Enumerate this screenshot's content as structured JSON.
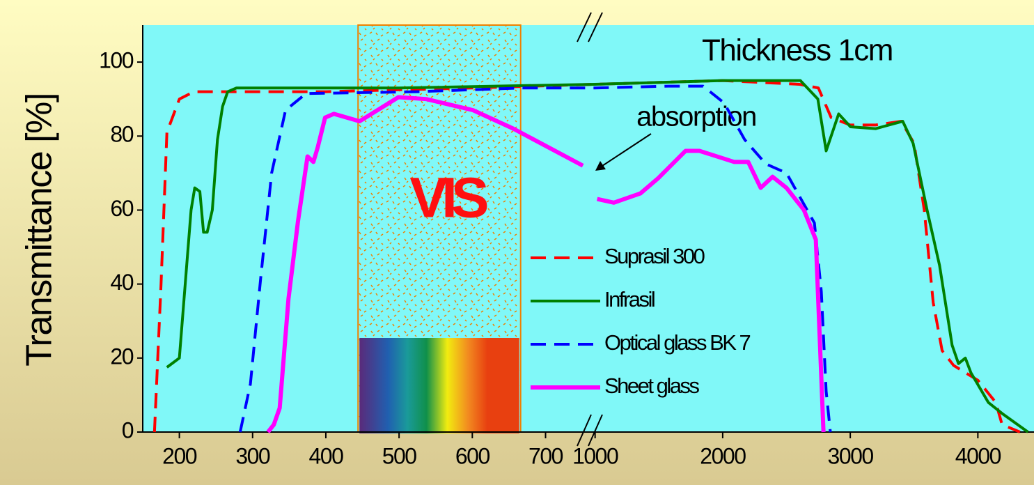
{
  "chart_data": {
    "type": "line",
    "y_label": "Transmittance [%]",
    "ylim": [
      0,
      110
    ],
    "yticks": [
      0,
      20,
      40,
      60,
      80,
      100
    ],
    "x_segments": [
      {
        "xlim": [
          150,
          758
        ],
        "xticks": [
          200,
          300,
          400,
          500,
          600,
          700
        ]
      },
      {
        "xlim": [
          950,
          4440
        ],
        "xticks": [
          1000,
          2000,
          3000,
          4000
        ]
      }
    ],
    "note": "Thickness 1cm",
    "annotation": "absorption",
    "band": {
      "label": "VIS",
      "x": [
        444,
        666
      ]
    },
    "series": [
      {
        "name": "Suprasil 300",
        "color": "#ff0000",
        "style": "dashed",
        "width": 4,
        "x": [
          166,
          175,
          183,
          200,
          220,
          400,
          600,
          1000,
          2000,
          2600,
          2750,
          2850,
          3000,
          3200,
          3400,
          3500,
          3580,
          3650,
          3720,
          3810,
          4000,
          4140,
          4190,
          4330
        ],
        "values": [
          0,
          40,
          81,
          90,
          92,
          92,
          93,
          94,
          95,
          94,
          93,
          85,
          83,
          83,
          84,
          78,
          60,
          35,
          22,
          18,
          14,
          8,
          2,
          0
        ]
      },
      {
        "name": "Infrasil",
        "color": "#008000",
        "style": "solid",
        "width": 4,
        "x": [
          183,
          200,
          216,
          221,
          228,
          233,
          238,
          245,
          252,
          259,
          266,
          278,
          500,
          1000,
          2000,
          2609,
          2746,
          2811,
          2909,
          3002,
          3198,
          3411,
          3493,
          3602,
          3700,
          3798,
          3848,
          3902,
          3946,
          4082,
          4191,
          4393
        ],
        "values": [
          17.5,
          20,
          60,
          66,
          65,
          54,
          54,
          60,
          79,
          88,
          92,
          93,
          93,
          94,
          95,
          95,
          90,
          76,
          86,
          82.5,
          82,
          84,
          78,
          60,
          45,
          23.5,
          18.5,
          20,
          16,
          8,
          5,
          0
        ]
      },
      {
        "name": "Optical glass BK 7",
        "color": "#0000ff",
        "style": "dashed",
        "width": 4,
        "x": [
          283,
          297,
          311,
          326,
          345,
          373,
          525,
          668,
          1000,
          1573,
          1846,
          2010,
          2173,
          2337,
          2500,
          2719,
          2773,
          2811,
          2844
        ],
        "values": [
          0,
          13,
          41.5,
          70,
          87,
          91.5,
          92,
          93,
          93,
          93.5,
          93.5,
          89,
          79,
          72.5,
          70,
          56.5,
          38,
          11,
          0
        ]
      },
      {
        "name": "Sheet glass",
        "color": "#ff00ff",
        "style": "solid",
        "width": 6,
        "x": [
          321,
          329,
          337,
          349,
          362,
          375,
          383,
          389,
          399,
          411,
          446,
          499,
          537,
          601,
          656,
          751,
          null,
          1016,
          1147,
          1355,
          1491,
          1709,
          1818,
          2091,
          2200,
          2298,
          2391,
          2500,
          2637,
          2730,
          2790
        ],
        "values": [
          0,
          2,
          6.5,
          36,
          57,
          74.5,
          73,
          77,
          85,
          86,
          84,
          90.5,
          90,
          87,
          82,
          72,
          null,
          63,
          62,
          64.5,
          68.5,
          76,
          76,
          73,
          73,
          66,
          69,
          66,
          60,
          52,
          0
        ]
      }
    ]
  }
}
